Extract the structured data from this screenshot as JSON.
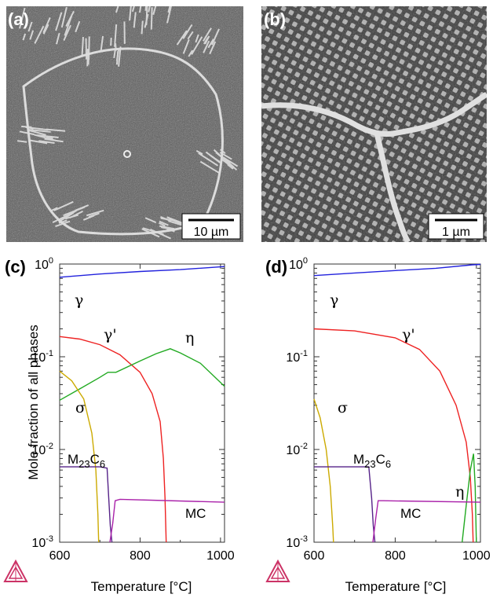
{
  "micrographs": [
    {
      "label": "(a)",
      "scale_bar": "10 µm"
    },
    {
      "label": "(b)",
      "scale_bar": "1 µm"
    }
  ],
  "colors": {
    "gamma": "#2222dd",
    "gamma_prime": "#ee2222",
    "eta": "#22aa22",
    "sigma": "#ccaa00",
    "m23c6": "#552288",
    "mc": "#aa22aa"
  },
  "chart_data": [
    {
      "type": "line",
      "panel_label": "(c)",
      "xlabel": "Temperature [°C]",
      "ylabel": "Mole fraction of all phases",
      "y_scale": "log",
      "xlim": [
        600,
        1010
      ],
      "ylim": [
        0.001,
        1
      ],
      "x_ticks": [
        600,
        800,
        1000
      ],
      "y_ticks": [
        "10-3",
        "10-2",
        "10-1",
        "100"
      ],
      "series": [
        {
          "name": "γ",
          "color_key": "gamma",
          "points": [
            [
              600,
              0.72
            ],
            [
              700,
              0.78
            ],
            [
              800,
              0.83
            ],
            [
              900,
              0.87
            ],
            [
              1010,
              0.94
            ]
          ]
        },
        {
          "name": "γ'",
          "color_key": "gamma_prime",
          "points": [
            [
              600,
              0.165
            ],
            [
              650,
              0.155
            ],
            [
              700,
              0.135
            ],
            [
              750,
              0.105
            ],
            [
              800,
              0.068
            ],
            [
              830,
              0.04
            ],
            [
              850,
              0.02
            ],
            [
              858,
              0.008
            ],
            [
              862,
              0.003
            ],
            [
              865,
              0.001
            ]
          ]
        },
        {
          "name": "η",
          "color_key": "eta",
          "points": [
            [
              600,
              0.034
            ],
            [
              650,
              0.045
            ],
            [
              700,
              0.06
            ],
            [
              720,
              0.068
            ],
            [
              740,
              0.068
            ],
            [
              800,
              0.09
            ],
            [
              840,
              0.108
            ],
            [
              875,
              0.122
            ],
            [
              900,
              0.11
            ],
            [
              950,
              0.085
            ],
            [
              1010,
              0.048
            ]
          ]
        },
        {
          "name": "σ",
          "color_key": "sigma",
          "points": [
            [
              600,
              0.07
            ],
            [
              630,
              0.055
            ],
            [
              660,
              0.035
            ],
            [
              680,
              0.015
            ],
            [
              690,
              0.006
            ],
            [
              695,
              0.002
            ],
            [
              697,
              0.001
            ]
          ]
        },
        {
          "name": "M23C6",
          "color_key": "m23c6",
          "points": [
            [
              600,
              0.0065
            ],
            [
              700,
              0.0065
            ],
            [
              718,
              0.0063
            ],
            [
              722,
              0.003
            ],
            [
              726,
              0.0015
            ],
            [
              730,
              0.001
            ]
          ]
        },
        {
          "name": "MC",
          "color_key": "mc",
          "points": [
            [
              725,
              0.001
            ],
            [
              732,
              0.0016
            ],
            [
              738,
              0.0028
            ],
            [
              750,
              0.0029
            ],
            [
              1010,
              0.0027
            ]
          ]
        }
      ],
      "annotations": [
        "γ",
        "γ'",
        "η",
        "σ",
        "M23C6",
        "MC"
      ]
    },
    {
      "type": "line",
      "panel_label": "(d)",
      "xlabel": "Temperature [°C]",
      "ylabel": "",
      "y_scale": "log",
      "xlim": [
        600,
        1010
      ],
      "ylim": [
        0.001,
        1
      ],
      "x_ticks": [
        600,
        800,
        1000
      ],
      "y_ticks": [
        "10-3",
        "10-2",
        "10-1",
        "100"
      ],
      "series": [
        {
          "name": "γ",
          "color_key": "gamma",
          "points": [
            [
              600,
              0.75
            ],
            [
              700,
              0.8
            ],
            [
              800,
              0.85
            ],
            [
              900,
              0.9
            ],
            [
              990,
              0.98
            ],
            [
              1010,
              0.99
            ]
          ]
        },
        {
          "name": "γ'",
          "color_key": "gamma_prime",
          "points": [
            [
              600,
              0.2
            ],
            [
              700,
              0.19
            ],
            [
              800,
              0.16
            ],
            [
              860,
              0.12
            ],
            [
              910,
              0.07
            ],
            [
              950,
              0.03
            ],
            [
              975,
              0.012
            ],
            [
              985,
              0.005
            ],
            [
              990,
              0.002
            ],
            [
              992,
              0.001
            ]
          ]
        },
        {
          "name": "η",
          "color_key": "eta",
          "points": [
            [
              965,
              0.001
            ],
            [
              975,
              0.0025
            ],
            [
              985,
              0.006
            ],
            [
              993,
              0.009
            ],
            [
              997,
              0.004
            ],
            [
              1000,
              0.001
            ]
          ]
        },
        {
          "name": "σ",
          "color_key": "sigma",
          "points": [
            [
              600,
              0.035
            ],
            [
              615,
              0.022
            ],
            [
              630,
              0.01
            ],
            [
              640,
              0.004
            ],
            [
              646,
              0.0015
            ],
            [
              648,
              0.001
            ]
          ]
        },
        {
          "name": "M23C6",
          "color_key": "m23c6",
          "points": [
            [
              600,
              0.0065
            ],
            [
              735,
              0.0065
            ],
            [
              742,
              0.003
            ],
            [
              746,
              0.0015
            ],
            [
              750,
              0.001
            ]
          ]
        },
        {
          "name": "MC",
          "color_key": "mc",
          "points": [
            [
              745,
              0.001
            ],
            [
              752,
              0.0018
            ],
            [
              758,
              0.0028
            ],
            [
              770,
              0.0028
            ],
            [
              1010,
              0.0027
            ]
          ]
        }
      ],
      "annotations": [
        "γ",
        "γ'",
        "η",
        "σ",
        "M23C6",
        "MC"
      ]
    }
  ]
}
